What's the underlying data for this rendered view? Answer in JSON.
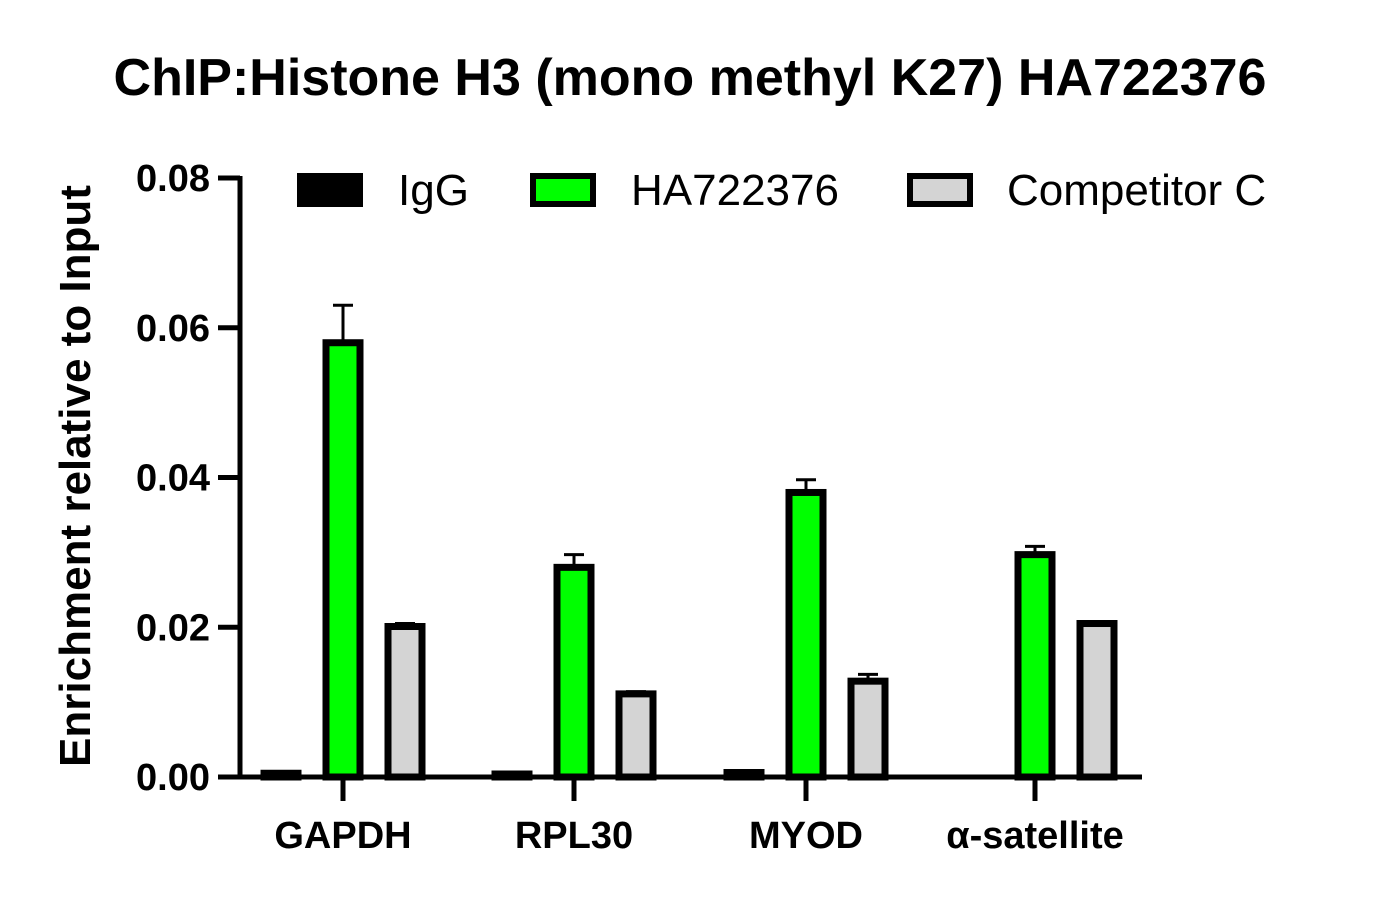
{
  "chart_data": {
    "type": "bar",
    "title": "ChIP:Histone H3 (mono methyl K27) HA722376",
    "xlabel": "",
    "ylabel": "Enrichment relative to Input",
    "ylim": [
      0,
      0.08
    ],
    "yticks": [
      "0.00",
      "0.02",
      "0.04",
      "0.06",
      "0.08"
    ],
    "categories": [
      "GAPDH",
      "RPL30",
      "MYOD",
      "α-satellite"
    ],
    "legend_position": "top",
    "series": [
      {
        "name": "IgG",
        "color": "#000000",
        "values": [
          0.0005,
          0.0004,
          0.0006,
          0.0
        ],
        "errors": [
          0.0,
          0.0,
          0.0,
          0.0
        ]
      },
      {
        "name": "HA722376",
        "color": "#00ff00",
        "values": [
          0.058,
          0.028,
          0.038,
          0.0297
        ],
        "errors": [
          0.005,
          0.0017,
          0.0017,
          0.0011
        ]
      },
      {
        "name": "Competitor C",
        "color": "#d4d4d4",
        "values": [
          0.0201,
          0.0111,
          0.0128,
          0.0205
        ],
        "errors": [
          0.0004,
          0.0003,
          0.0009,
          0.0
        ]
      }
    ]
  }
}
